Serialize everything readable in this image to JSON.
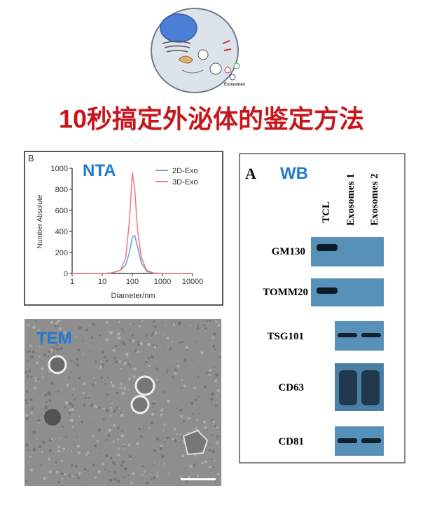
{
  "header": {
    "diagram_label": "Exosomes",
    "title": "10秒搞定外泌体的鉴定方法"
  },
  "chart_data": {
    "type": "line",
    "panel_label": "B",
    "title": "NTA",
    "x_label": "Diameter/nm",
    "y_label": "Number Absolute",
    "x": [
      1,
      2,
      5,
      10,
      20,
      40,
      60,
      80,
      100,
      120,
      150,
      200,
      300,
      500,
      1000,
      10000
    ],
    "series": [
      {
        "name": "2D-Exo",
        "color": "#6fa0dc",
        "values": [
          0,
          0,
          0,
          0,
          5,
          30,
          80,
          200,
          350,
          360,
          250,
          100,
          20,
          5,
          0,
          0
        ]
      },
      {
        "name": "3D-Exo",
        "color": "#f08080",
        "values": [
          0,
          0,
          0,
          0,
          5,
          30,
          150,
          500,
          960,
          800,
          400,
          150,
          30,
          5,
          0,
          0
        ]
      }
    ],
    "x_log": true,
    "xlim": [
      1,
      10000
    ],
    "xticks": [
      1,
      10,
      100,
      1000,
      10000
    ],
    "ylim": [
      0,
      1000
    ],
    "yticks": [
      0,
      200,
      400,
      600,
      800,
      1000
    ],
    "legend": "top-right"
  },
  "tem": {
    "label": "TEM"
  },
  "wb": {
    "panel_label": "A",
    "title": "WB",
    "columns": [
      "TCL",
      "Exosomes 1",
      "Exosomes 2"
    ],
    "rows": [
      "GM130",
      "TOMM20",
      "TSG101",
      "CD63",
      "CD81"
    ]
  }
}
